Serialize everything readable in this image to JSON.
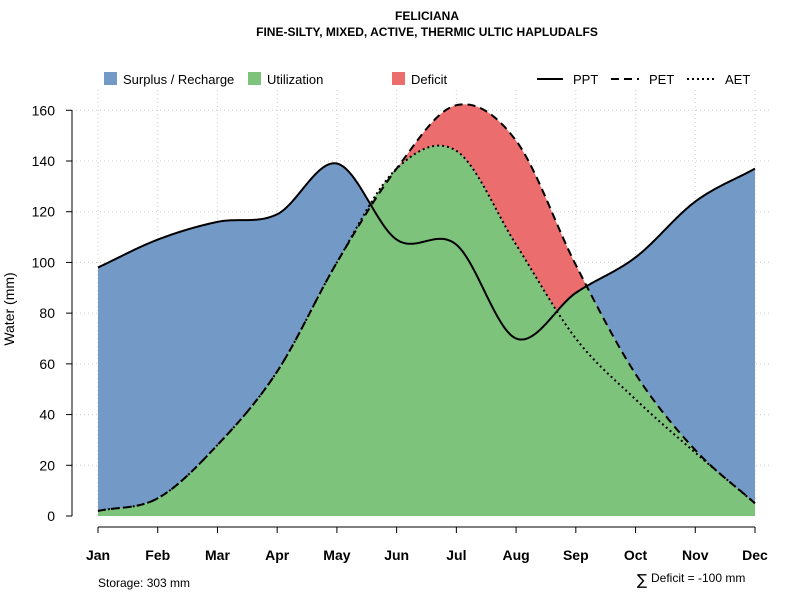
{
  "chart_data": {
    "type": "area",
    "title": "FELICIANA",
    "subtitle": "FINE-SILTY, MIXED, ACTIVE, THERMIC ULTIC HAPLUDALFS",
    "xlabel": "",
    "ylabel": "Water (mm)",
    "ylim": [
      0,
      168
    ],
    "yticks": [
      0,
      20,
      40,
      60,
      80,
      100,
      120,
      140,
      160
    ],
    "categories": [
      "Jan",
      "Feb",
      "Mar",
      "Apr",
      "May",
      "Jun",
      "Jul",
      "Aug",
      "Sep",
      "Oct",
      "Nov",
      "Dec"
    ],
    "series": [
      {
        "name": "PPT",
        "line_style": "solid",
        "values": [
          98,
          109,
          116,
          119,
          139,
          109,
          107,
          70,
          88,
          102,
          124,
          137
        ]
      },
      {
        "name": "PET",
        "line_style": "dashed",
        "values": [
          2,
          7,
          28,
          57,
          100,
          137,
          162,
          148,
          99,
          56,
          26,
          5
        ]
      },
      {
        "name": "AET",
        "line_style": "dotted",
        "values": [
          2,
          7,
          28,
          57,
          100,
          137,
          144,
          107,
          70,
          46,
          25,
          5
        ]
      }
    ],
    "legend": [
      {
        "label": "Surplus / Recharge",
        "kind": "fill",
        "color": "#7399c6"
      },
      {
        "label": "Utilization",
        "kind": "fill",
        "color": "#7ec37b"
      },
      {
        "label": "Deficit",
        "kind": "fill",
        "color": "#ec6d6d"
      },
      {
        "label": "PPT",
        "kind": "line",
        "dash": "solid"
      },
      {
        "label": "PET",
        "kind": "line",
        "dash": "dashed"
      },
      {
        "label": "AET",
        "kind": "line",
        "dash": "dotted"
      }
    ],
    "legend_position": "top",
    "grid": true,
    "colors": {
      "surplus": "#7399c6",
      "utilization": "#7ec37b",
      "deficit": "#ec6d6d",
      "line": "#000000",
      "grid": "#cccccc"
    },
    "annotations": {
      "storage": "Storage: 303 mm",
      "deficit_symbol": "∑",
      "deficit": "Deficit = -100 mm"
    }
  }
}
